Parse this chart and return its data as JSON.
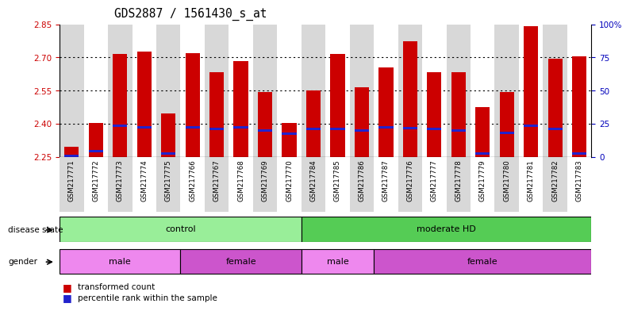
{
  "title": "GDS2887 / 1561430_s_at",
  "samples": [
    "GSM217771",
    "GSM217772",
    "GSM217773",
    "GSM217774",
    "GSM217775",
    "GSM217766",
    "GSM217767",
    "GSM217768",
    "GSM217769",
    "GSM217770",
    "GSM217784",
    "GSM217785",
    "GSM217786",
    "GSM217787",
    "GSM217776",
    "GSM217777",
    "GSM217778",
    "GSM217779",
    "GSM217780",
    "GSM217781",
    "GSM217782",
    "GSM217783"
  ],
  "red_values": [
    2.295,
    2.405,
    2.715,
    2.725,
    2.445,
    2.72,
    2.635,
    2.685,
    2.545,
    2.405,
    2.55,
    2.715,
    2.565,
    2.655,
    2.775,
    2.635,
    2.635,
    2.475,
    2.545,
    2.84,
    2.695,
    2.705
  ],
  "blue_values": [
    2.255,
    2.275,
    2.39,
    2.385,
    2.265,
    2.385,
    2.375,
    2.385,
    2.37,
    2.355,
    2.375,
    2.375,
    2.37,
    2.385,
    2.38,
    2.375,
    2.37,
    2.265,
    2.36,
    2.39,
    2.375,
    2.265
  ],
  "ymin": 2.25,
  "ymax": 2.85,
  "yticks_left": [
    2.25,
    2.4,
    2.55,
    2.7,
    2.85
  ],
  "yticks_right_vals": [
    0,
    25,
    50,
    75,
    100
  ],
  "yticks_right_labels": [
    "0",
    "25",
    "50",
    "75",
    "100%"
  ],
  "disease_state_groups": [
    {
      "label": "control",
      "start": 0,
      "end": 10,
      "color": "#99EE99"
    },
    {
      "label": "moderate HD",
      "start": 10,
      "end": 22,
      "color": "#55CC55"
    }
  ],
  "gender_groups": [
    {
      "label": "male",
      "start": 0,
      "end": 5,
      "color": "#EE88EE"
    },
    {
      "label": "female",
      "start": 5,
      "end": 10,
      "color": "#CC55CC"
    },
    {
      "label": "male",
      "start": 10,
      "end": 13,
      "color": "#EE88EE"
    },
    {
      "label": "female",
      "start": 13,
      "end": 22,
      "color": "#CC55CC"
    }
  ],
  "bar_color": "#CC0000",
  "blue_color": "#2222CC",
  "bg_color": "#FFFFFF",
  "col_bg_odd": "#D8D8D8",
  "col_bg_even": "#FFFFFF",
  "grid_color": "#000000",
  "tick_color_left": "#CC0000",
  "tick_color_right": "#0000BB",
  "label_fontsize": 7.5,
  "title_fontsize": 10.5,
  "bar_width": 0.6
}
